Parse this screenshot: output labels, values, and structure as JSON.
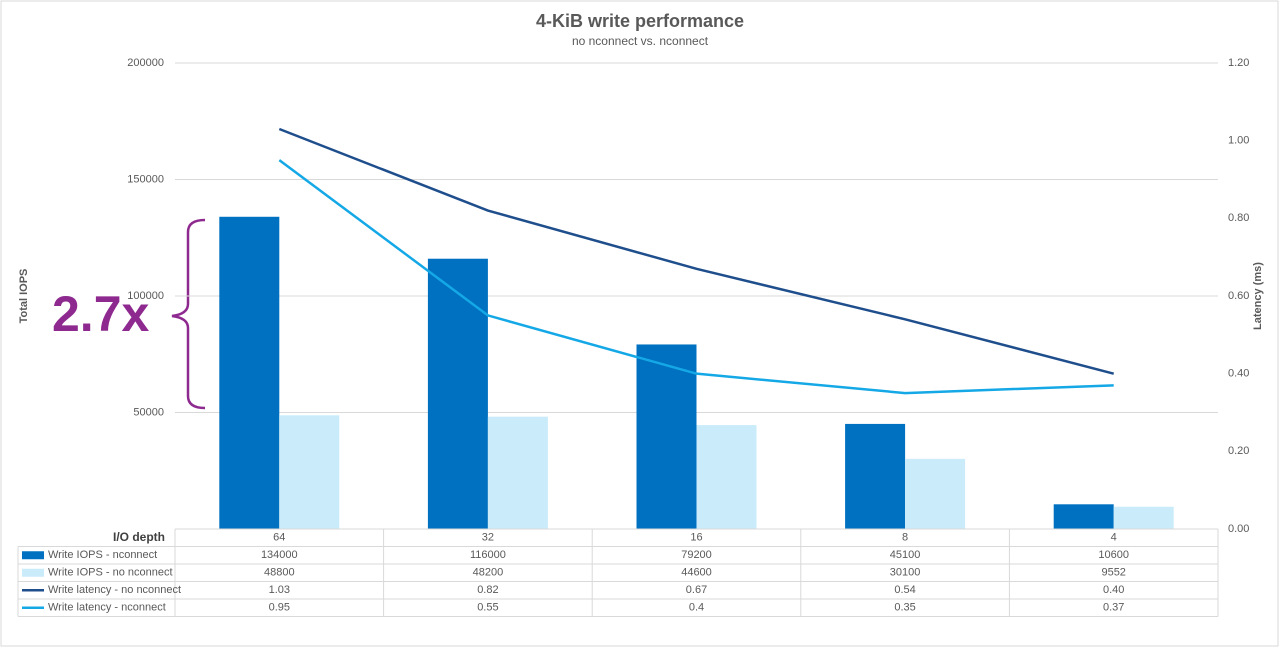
{
  "chart_data": {
    "type": "bar-line",
    "title": "4-KiB write performance",
    "subtitle": "no nconnect vs. nconnect",
    "y_label": "Total IOPS",
    "y2_label": "Latency (ms)",
    "x_label": "I/O depth",
    "categories": [
      "64",
      "32",
      "16",
      "8",
      "4"
    ],
    "series": [
      {
        "name": "Write IOPS - nconnect",
        "color": "#0070c0",
        "kind": "bar",
        "values": [
          134000,
          116000,
          79200,
          45100,
          10600
        ]
      },
      {
        "name": "Write IOPS - no nconnect",
        "color": "#caecfa",
        "kind": "bar",
        "values": [
          48800,
          48200,
          44600,
          30100,
          9552
        ]
      },
      {
        "name": "Write latency - no nconnect",
        "color": "#1f4e8c",
        "kind": "line",
        "axis": "y2",
        "values": [
          1.03,
          0.82,
          0.67,
          0.54,
          0.4
        ],
        "value_labels": [
          "1.03",
          "0.82",
          "0.67",
          "0.54",
          "0.40"
        ]
      },
      {
        "name": "Write latency - nconnect",
        "color": "#14a8e6",
        "kind": "line",
        "axis": "y2",
        "values": [
          0.95,
          0.55,
          0.4,
          0.35,
          0.37
        ]
      }
    ],
    "ylim": [
      0,
      200000
    ],
    "yticks": [
      50000,
      100000,
      150000,
      200000
    ],
    "y2lim": [
      0,
      1.2
    ],
    "y2ticks": [
      {
        "value": 0,
        "label": "0.00"
      },
      {
        "value": 0.2,
        "label": "0.20"
      },
      {
        "value": 0.4,
        "label": "0.40"
      },
      {
        "value": 0.6,
        "label": "0.60"
      },
      {
        "value": 0.8,
        "label": "0.80"
      },
      {
        "value": 1.0,
        "label": "1.00"
      },
      {
        "value": 1.2,
        "label": "1.20"
      }
    ],
    "grid": true,
    "annotation": "2.7x"
  }
}
